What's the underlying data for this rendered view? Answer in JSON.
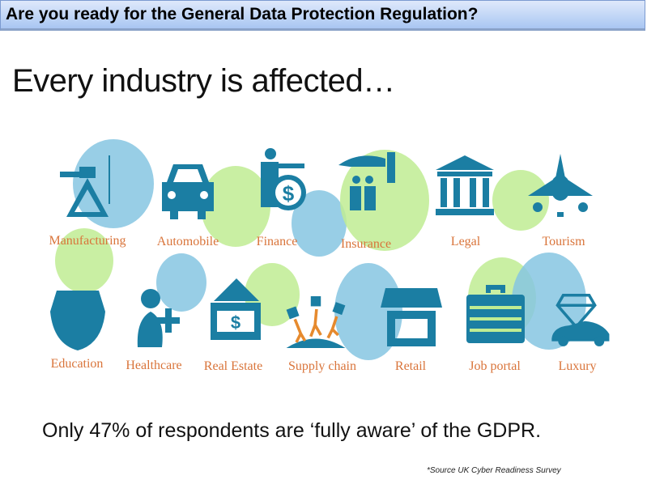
{
  "header": {
    "title": "Are you ready for the General Data Protection Regulation?"
  },
  "slide": {
    "heading": "Every industry is affected…",
    "industries_row1": [
      "Manufacturing",
      "Automobile",
      "Finance",
      "Insurance",
      "Legal",
      "Tourism"
    ],
    "industries_row2": [
      "Education",
      "Healthcare",
      "Real Estate",
      "Supply chain",
      "Retail",
      "Job portal",
      "Luxury"
    ],
    "statement": "Only 47% of respondents are ‘fully aware’ of the GDPR.",
    "source": "*Source UK Cyber Readiness Survey"
  },
  "colors": {
    "icon": "#1b7ea3",
    "label": "#d9743a",
    "blue_circle": "#86c6e2",
    "green_circle": "#bfec93"
  }
}
